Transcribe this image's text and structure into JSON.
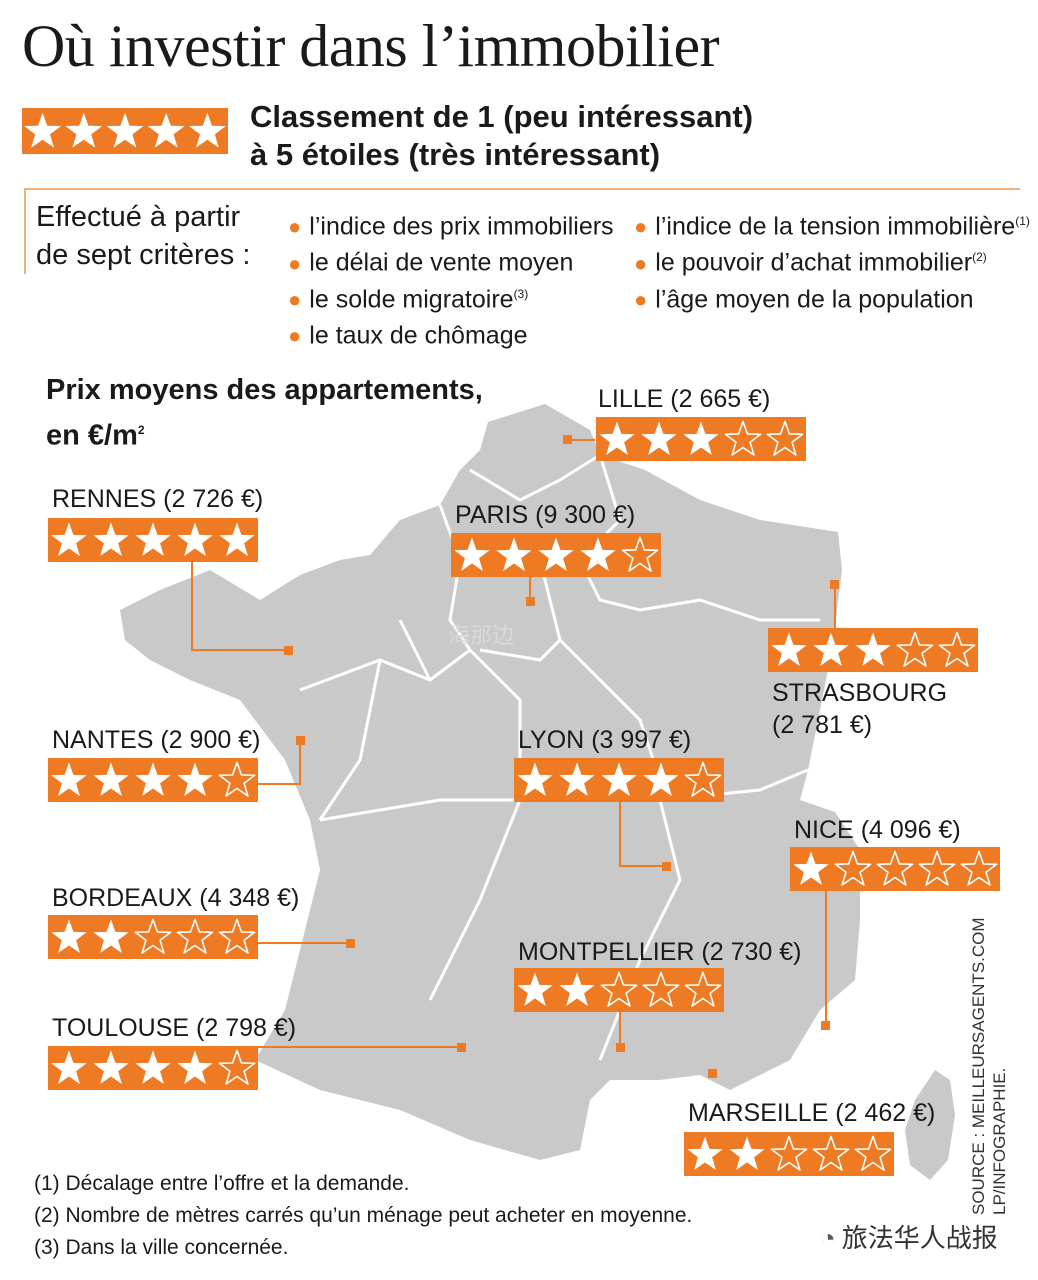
{
  "title": "Où investir dans l’immobilier",
  "legend": {
    "line1": "Classement de 1 (peu intéressant)",
    "line2": "à 5 étoiles (très intéressant)",
    "max_stars": 5
  },
  "criteria": {
    "intro_line1": "Effectué à partir",
    "intro_line2": "de sept critères :",
    "left": [
      {
        "text": "l’indice des prix immobiliers",
        "note": ""
      },
      {
        "text": "le délai de vente moyen",
        "note": ""
      },
      {
        "text": "le solde migratoire",
        "note": "(3)"
      },
      {
        "text": "le taux de chômage",
        "note": ""
      }
    ],
    "right": [
      {
        "text": "l’indice de la tension immobilière",
        "note": "(1)"
      },
      {
        "text": "le pouvoir d’achat immobilier",
        "note": "(2)"
      },
      {
        "text": "l’âge moyen de la population",
        "note": ""
      }
    ]
  },
  "price_heading": {
    "line1": "Prix moyens des appartements,",
    "line2": "en €/m",
    "exp": "2"
  },
  "cities": [
    {
      "name": "LILLE",
      "price": "(2 665 €)",
      "rating": 3
    },
    {
      "name": "RENNES",
      "price": "(2 726 €)",
      "rating": 5
    },
    {
      "name": "PARIS",
      "price": "(9 300 €)",
      "rating": 4
    },
    {
      "name": "STRASBOURG",
      "price": "(2 781 €)",
      "rating": 3
    },
    {
      "name": "NANTES",
      "price": "(2 900 €)",
      "rating": 4
    },
    {
      "name": "LYON",
      "price": "(3 997 €)",
      "rating": 4
    },
    {
      "name": "NICE",
      "price": "(4 096 €)",
      "rating": 1
    },
    {
      "name": "BORDEAUX",
      "price": "(4 348 €)",
      "rating": 2
    },
    {
      "name": "MONTPELLIER",
      "price": "(2 730 €)",
      "rating": 2
    },
    {
      "name": "TOULOUSE",
      "price": "(2 798 €)",
      "rating": 4
    },
    {
      "name": "MARSEILLE",
      "price": "(2 462 €)",
      "rating": 2
    }
  ],
  "source_line1": "LP/INFOGRAPHIE.",
  "source_line2": "SOURCE : MEILLEURSAGENTS.COM",
  "footnotes": [
    "(1) Décalage entre l’offre et la demande.",
    "(2) Nombre de mètres carrés qu’un ménage peut acheter en moyenne.",
    "(3) Dans la ville concernée."
  ],
  "watermark": "旅法华人战报",
  "map_watermark": "海那边",
  "colors": {
    "accent": "#ee7a23",
    "map": "#c9c9c9",
    "border": "#ffffff"
  }
}
